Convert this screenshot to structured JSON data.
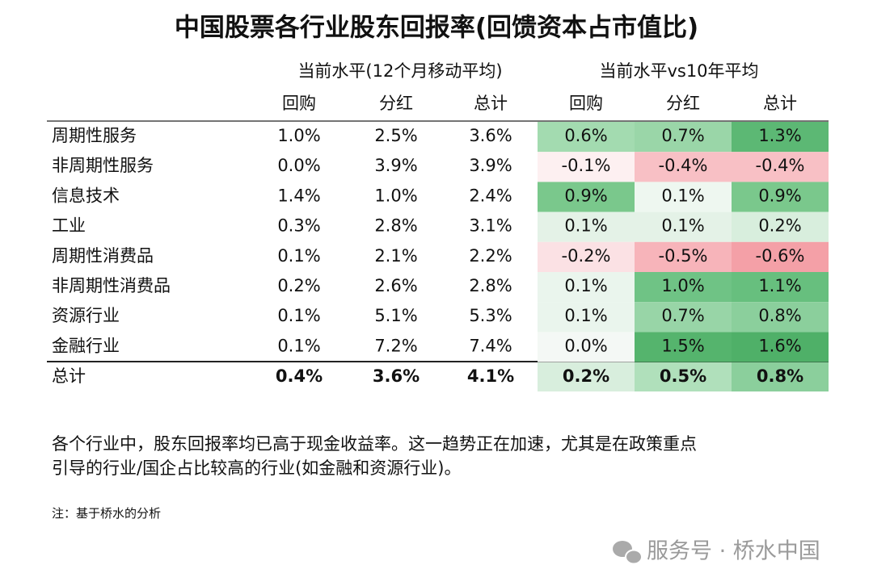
{
  "title": "中国股票各行业股东回报率(回馈资本占市值比)",
  "header": {
    "groups": [
      "当前水平(12个月移动平均)",
      "当前水平vs10年平均"
    ],
    "columns": [
      "回购",
      "分红",
      "总计",
      "回购",
      "分红",
      "总计"
    ]
  },
  "rows": [
    {
      "label": "周期性服务",
      "cells": [
        "1.0%",
        "2.5%",
        "3.6%",
        "0.6%",
        "0.7%",
        "1.3%"
      ],
      "colors": [
        "#a3dbb0",
        "#9ad6a8",
        "#5cb874"
      ]
    },
    {
      "label": "非周期性服务",
      "cells": [
        "0.0%",
        "3.9%",
        "3.9%",
        "-0.1%",
        "-0.4%",
        "-0.4%"
      ],
      "colors": [
        "#fdf0f1",
        "#f8c0c5",
        "#f8c0c5"
      ]
    },
    {
      "label": "信息技术",
      "cells": [
        "1.4%",
        "1.0%",
        "2.4%",
        "0.9%",
        "0.1%",
        "0.9%"
      ],
      "colors": [
        "#7ac88c",
        "#eef7f0",
        "#7ac88c"
      ]
    },
    {
      "label": "工业",
      "cells": [
        "0.3%",
        "2.8%",
        "3.1%",
        "0.1%",
        "0.1%",
        "0.2%"
      ],
      "colors": [
        "#e4f2e7",
        "#e4f2e7",
        "#d8eedd"
      ]
    },
    {
      "label": "周期性消费品",
      "cells": [
        "0.1%",
        "2.1%",
        "2.2%",
        "-0.2%",
        "-0.5%",
        "-0.6%"
      ],
      "colors": [
        "#fbe1e4",
        "#f7b4ba",
        "#f4a0a7"
      ]
    },
    {
      "label": "非周期性消费品",
      "cells": [
        "0.2%",
        "2.6%",
        "2.8%",
        "0.1%",
        "1.0%",
        "1.1%"
      ],
      "colors": [
        "#eaf5ed",
        "#6fc385",
        "#67bf7e"
      ]
    },
    {
      "label": "资源行业",
      "cells": [
        "0.1%",
        "5.1%",
        "5.3%",
        "0.1%",
        "0.7%",
        "0.8%"
      ],
      "colors": [
        "#eaf5ed",
        "#98d5a7",
        "#8bcf9c"
      ]
    },
    {
      "label": "金融行业",
      "cells": [
        "0.1%",
        "7.2%",
        "7.4%",
        "0.0%",
        "1.5%",
        "1.6%"
      ],
      "colors": [
        "#f4f8f5",
        "#55b46d",
        "#4fb068"
      ]
    }
  ],
  "total": {
    "label": "总计",
    "cells": [
      "0.4%",
      "3.6%",
      "4.1%",
      "0.2%",
      "0.5%",
      "0.8%"
    ],
    "colors": [
      "#d8eedd",
      "#b0e0bb",
      "#8bcf9c"
    ]
  },
  "body_lines": [
    "各个行业中，股东回报率均已高于现金收益率。这一趋势正在加速，尤其是在政策重点",
    "引导的行业/国企占比较高的行业(如金融和资源行业)。"
  ],
  "note": "注：基于桥水的分析",
  "watermark": "服务号 · 桥水中国"
}
